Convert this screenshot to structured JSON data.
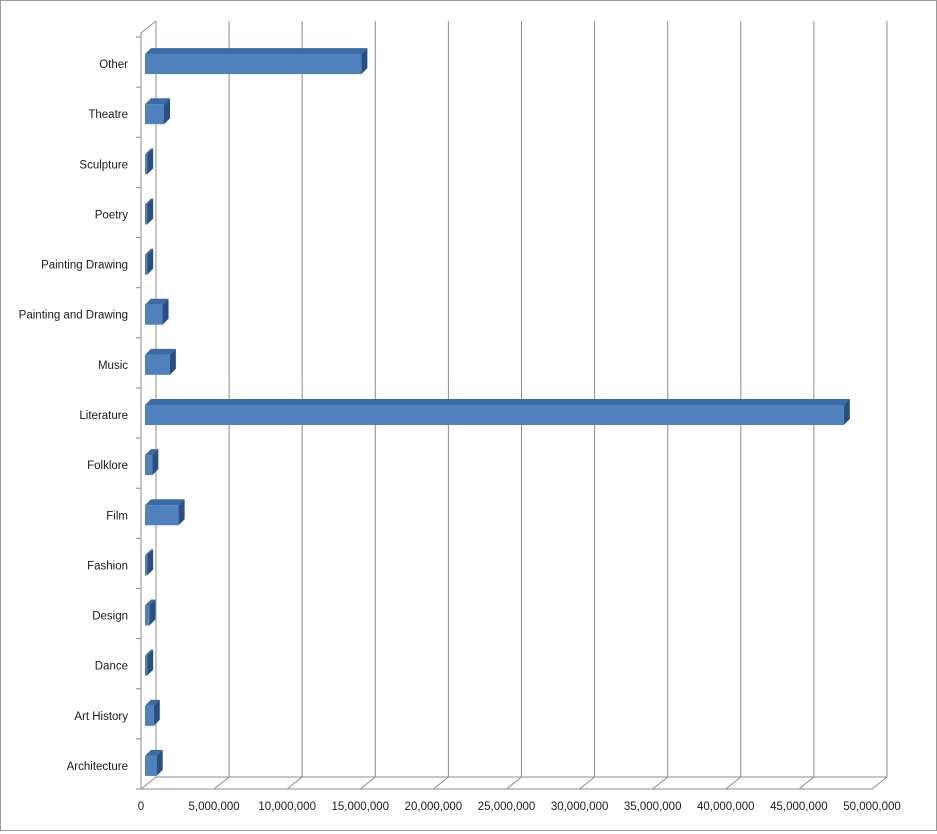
{
  "chart_data": {
    "type": "bar",
    "orientation": "horizontal",
    "style": "3d-clustered",
    "categories": [
      "Architecture",
      "Art History",
      "Dance",
      "Design",
      "Fashion",
      "Film",
      "Folklore",
      "Literature",
      "Music",
      "Painting and Drawing",
      "Painting Drawing",
      "Poetry",
      "Sculpture",
      "Theatre",
      "Other"
    ],
    "values": [
      800000,
      600000,
      150000,
      300000,
      150000,
      2300000,
      500000,
      47800000,
      1700000,
      1200000,
      150000,
      150000,
      150000,
      1300000,
      14800000
    ],
    "xlim": [
      0,
      50000000
    ],
    "x_ticks": [
      "0",
      "5,000,000",
      "10,000,000",
      "15,000,000",
      "20,000,000",
      "25,000,000",
      "30,000,000",
      "35,000,000",
      "40,000,000",
      "45,000,000",
      "50,000,000"
    ],
    "title": "",
    "xlabel": "",
    "ylabel": "",
    "grid": true,
    "legend": "none",
    "colors": {
      "bar_front": "#4f81bd",
      "bar_top": "#3a6ba5",
      "bar_side": "#2c4e7e",
      "gridline": "#8c8c8c",
      "axis": "#8c8c8c"
    }
  }
}
